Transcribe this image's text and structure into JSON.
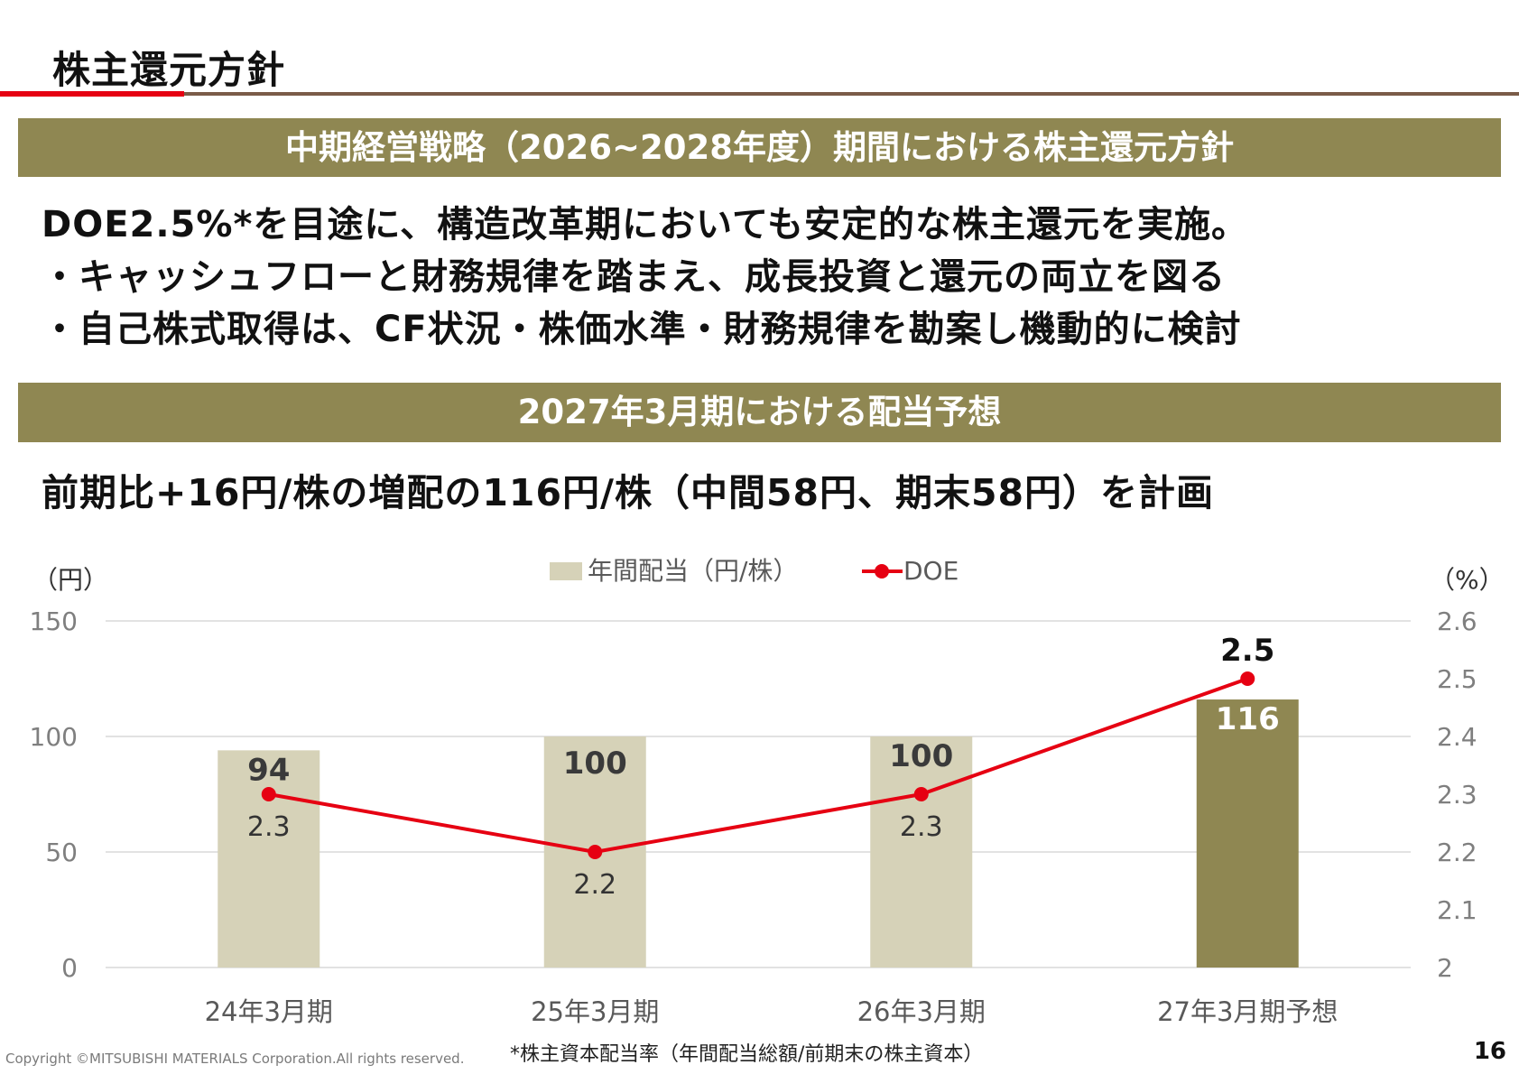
{
  "header": {
    "title": "株主還元方針"
  },
  "section1": {
    "band": "中期経営戦略（2026~2028年度）期間における株主還元方針",
    "lines": [
      "DOE2.5%*を目途に、構造改革期においても安定的な株主還元を実施。",
      "・キャッシュフローと財務規律を踏まえ、成長投資と還元の両立を図る",
      "・自己株式取得は、CF状況・株価水準・財務規律を勘案し機動的に検討"
    ]
  },
  "section2": {
    "band": "2027年3月期における配当予想",
    "headline": "前期比+16円/株の増配の116円/株（中間58円、期末58円）を計画"
  },
  "chart_data": {
    "type": "bar",
    "categories": [
      "24年3月期",
      "25年3月期",
      "26年3月期",
      "27年3月期予想"
    ],
    "series": [
      {
        "name": "年間配当（円/株）",
        "kind": "bar",
        "axis": "left",
        "values": [
          94,
          100,
          100,
          116
        ],
        "labels": [
          "94",
          "100",
          "100",
          "116"
        ]
      },
      {
        "name": "DOE",
        "kind": "line",
        "axis": "right",
        "values": [
          2.3,
          2.2,
          2.3,
          2.5
        ],
        "labels": [
          "2.3",
          "2.2",
          "2.3",
          "2.5"
        ]
      }
    ],
    "y_left": {
      "unit": "（円）",
      "range": [
        0,
        150
      ],
      "ticks": [
        "0",
        "50",
        "100",
        "150"
      ]
    },
    "y_right": {
      "unit": "（%）",
      "range": [
        2.0,
        2.6
      ],
      "ticks": [
        "2",
        "2.1",
        "2.2",
        "2.3",
        "2.4",
        "2.5",
        "2.6"
      ]
    },
    "legend_position": "top-center",
    "grid": true,
    "colors": {
      "bar_actual": "#d6d2b8",
      "bar_forecast": "#8f8752",
      "line": "#e60012",
      "grid": "#d9d9d9"
    }
  },
  "footer": {
    "copyright": "Copyright ©MITSUBISHI MATERIALS Corporation.All rights reserved.",
    "footnote": "*株主資本配当率（年間配当総額/前期末の株主資本）",
    "page": "16"
  }
}
